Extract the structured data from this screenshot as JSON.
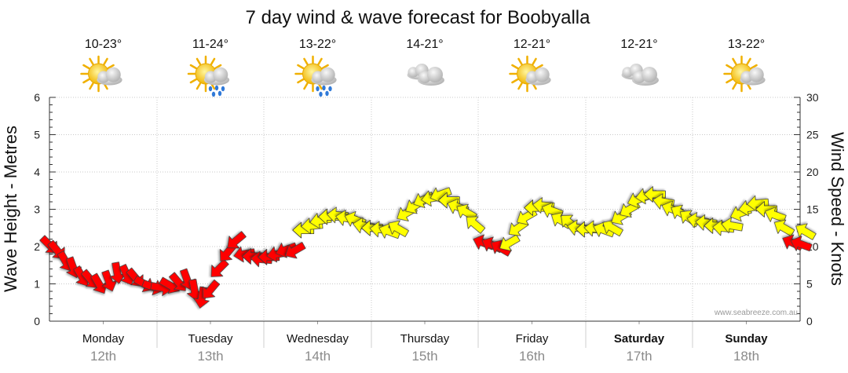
{
  "chart_data": {
    "type": "line",
    "title": "7 day wind & wave forecast for Boobyalla",
    "ylabel_left": "Wave Height - Metres",
    "ylabel_right": "Wind Speed - Knots",
    "ylim_left": [
      0,
      6
    ],
    "ylim_right": [
      0,
      30
    ],
    "yticks_left": [
      "0",
      "1",
      "2",
      "3",
      "4",
      "5",
      "6"
    ],
    "yticks_right": [
      "0",
      "5",
      "10",
      "15",
      "20",
      "25",
      "30"
    ],
    "grid": true,
    "watermark": "www.seabreeze.com.au",
    "days": [
      {
        "name": "Monday",
        "date": "12th",
        "temp": "10-23°",
        "icon": "sun-cloud-icon",
        "bold": false
      },
      {
        "name": "Tuesday",
        "date": "13th",
        "temp": "11-24°",
        "icon": "sun-cloud-rain-icon",
        "bold": false
      },
      {
        "name": "Wednesday",
        "date": "14th",
        "temp": "13-22°",
        "icon": "sun-cloud-rain-icon",
        "bold": false
      },
      {
        "name": "Thursday",
        "date": "15th",
        "temp": "14-21°",
        "icon": "cloud-icon",
        "bold": false
      },
      {
        "name": "Friday",
        "date": "16th",
        "temp": "12-21°",
        "icon": "sun-cloud-icon",
        "bold": false
      },
      {
        "name": "Saturday",
        "date": "17th",
        "temp": "12-21°",
        "icon": "cloud-icon",
        "bold": true
      },
      {
        "name": "Sunday",
        "date": "18th",
        "temp": "13-22°",
        "icon": "sun-cloud-icon",
        "bold": true
      }
    ],
    "series": [
      {
        "name": "Wind Speed",
        "axis": "right",
        "colors": {
          "strong": "#ff0000",
          "moderate": "#ffff00"
        },
        "points": [
          {
            "day": 0.0,
            "knots": 10.2,
            "dir": 315,
            "level": "strong"
          },
          {
            "day": 0.07,
            "knots": 9.5,
            "dir": 320,
            "level": "strong"
          },
          {
            "day": 0.15,
            "knots": 8.0,
            "dir": 330,
            "level": "strong"
          },
          {
            "day": 0.22,
            "knots": 7.2,
            "dir": 340,
            "level": "strong"
          },
          {
            "day": 0.3,
            "knots": 6.0,
            "dir": 330,
            "level": "strong"
          },
          {
            "day": 0.38,
            "knots": 5.6,
            "dir": 320,
            "level": "strong"
          },
          {
            "day": 0.46,
            "knots": 5.0,
            "dir": 330,
            "level": "strong"
          },
          {
            "day": 0.55,
            "knots": 5.4,
            "dir": 340,
            "level": "strong"
          },
          {
            "day": 0.63,
            "knots": 6.5,
            "dir": 350,
            "level": "strong"
          },
          {
            "day": 0.72,
            "knots": 6.2,
            "dir": 335,
            "level": "strong"
          },
          {
            "day": 0.8,
            "knots": 5.8,
            "dir": 320,
            "level": "strong"
          },
          {
            "day": 0.88,
            "knots": 5.0,
            "dir": 300,
            "level": "strong"
          },
          {
            "day": 0.96,
            "knots": 4.6,
            "dir": 290,
            "level": "strong"
          },
          {
            "day": 1.04,
            "knots": 4.5,
            "dir": 280,
            "level": "strong"
          },
          {
            "day": 1.12,
            "knots": 4.8,
            "dir": 300,
            "level": "strong"
          },
          {
            "day": 1.2,
            "knots": 5.2,
            "dir": 320,
            "level": "strong"
          },
          {
            "day": 1.28,
            "knots": 5.6,
            "dir": 340,
            "level": "strong"
          },
          {
            "day": 1.35,
            "knots": 4.2,
            "dir": 350,
            "level": "strong"
          },
          {
            "day": 1.42,
            "knots": 3.2,
            "dir": 10,
            "level": "strong"
          },
          {
            "day": 1.5,
            "knots": 4.2,
            "dir": 40,
            "level": "strong"
          },
          {
            "day": 1.58,
            "knots": 7.0,
            "dir": 45,
            "level": "strong"
          },
          {
            "day": 1.66,
            "knots": 9.2,
            "dir": 40,
            "level": "strong"
          },
          {
            "day": 1.74,
            "knots": 10.8,
            "dir": 50,
            "level": "strong"
          },
          {
            "day": 1.82,
            "knots": 9.0,
            "dir": 80,
            "level": "strong"
          },
          {
            "day": 1.9,
            "knots": 8.7,
            "dir": 90,
            "level": "strong"
          },
          {
            "day": 1.98,
            "knots": 8.3,
            "dir": 95,
            "level": "strong"
          },
          {
            "day": 2.05,
            "knots": 8.6,
            "dir": 90,
            "level": "strong"
          },
          {
            "day": 2.13,
            "knots": 9.0,
            "dir": 80,
            "level": "strong"
          },
          {
            "day": 2.21,
            "knots": 9.6,
            "dir": 70,
            "level": "strong"
          },
          {
            "day": 2.29,
            "knots": 9.5,
            "dir": 60,
            "level": "strong"
          },
          {
            "day": 2.37,
            "knots": 12.2,
            "dir": 90,
            "level": "moderate"
          },
          {
            "day": 2.45,
            "knots": 12.8,
            "dir": 85,
            "level": "moderate"
          },
          {
            "day": 2.53,
            "knots": 13.5,
            "dir": 80,
            "level": "moderate"
          },
          {
            "day": 2.61,
            "knots": 14.0,
            "dir": 90,
            "level": "moderate"
          },
          {
            "day": 2.69,
            "knots": 14.2,
            "dir": 95,
            "level": "moderate"
          },
          {
            "day": 2.77,
            "knots": 13.8,
            "dir": 100,
            "level": "moderate"
          },
          {
            "day": 2.85,
            "knots": 13.6,
            "dir": 110,
            "level": "moderate"
          },
          {
            "day": 2.93,
            "knots": 12.8,
            "dir": 100,
            "level": "moderate"
          },
          {
            "day": 3.01,
            "knots": 12.5,
            "dir": 90,
            "level": "moderate"
          },
          {
            "day": 3.09,
            "knots": 12.3,
            "dir": 95,
            "level": "moderate"
          },
          {
            "day": 3.17,
            "knots": 12.0,
            "dir": 110,
            "level": "moderate"
          },
          {
            "day": 3.25,
            "knots": 12.4,
            "dir": 120,
            "level": "moderate"
          },
          {
            "day": 3.33,
            "knots": 14.5,
            "dir": 60,
            "level": "moderate"
          },
          {
            "day": 3.41,
            "knots": 15.5,
            "dir": 60,
            "level": "moderate"
          },
          {
            "day": 3.49,
            "knots": 16.3,
            "dir": 65,
            "level": "moderate"
          },
          {
            "day": 3.57,
            "knots": 16.5,
            "dir": 80,
            "level": "moderate"
          },
          {
            "day": 3.65,
            "knots": 17.0,
            "dir": 70,
            "level": "moderate"
          },
          {
            "day": 3.73,
            "knots": 16.2,
            "dir": 90,
            "level": "moderate"
          },
          {
            "day": 3.81,
            "knots": 15.3,
            "dir": 110,
            "level": "moderate"
          },
          {
            "day": 3.89,
            "knots": 14.6,
            "dir": 120,
            "level": "moderate"
          },
          {
            "day": 3.97,
            "knots": 13.0,
            "dir": 130,
            "level": "moderate"
          },
          {
            "day": 4.05,
            "knots": 10.5,
            "dir": 110,
            "level": "strong"
          },
          {
            "day": 4.13,
            "knots": 10.2,
            "dir": 115,
            "level": "strong"
          },
          {
            "day": 4.21,
            "knots": 9.8,
            "dir": 120,
            "level": "strong"
          },
          {
            "day": 4.29,
            "knots": 10.5,
            "dir": 60,
            "level": "moderate"
          },
          {
            "day": 4.37,
            "knots": 12.5,
            "dir": 55,
            "level": "moderate"
          },
          {
            "day": 4.45,
            "knots": 14.0,
            "dir": 60,
            "level": "moderate"
          },
          {
            "day": 4.53,
            "knots": 15.2,
            "dir": 90,
            "level": "moderate"
          },
          {
            "day": 4.61,
            "knots": 15.5,
            "dir": 95,
            "level": "moderate"
          },
          {
            "day": 4.69,
            "knots": 14.8,
            "dir": 110,
            "level": "moderate"
          },
          {
            "day": 4.77,
            "knots": 13.5,
            "dir": 120,
            "level": "moderate"
          },
          {
            "day": 4.85,
            "knots": 13.2,
            "dir": 130,
            "level": "moderate"
          },
          {
            "day": 4.93,
            "knots": 12.5,
            "dir": 100,
            "level": "moderate"
          },
          {
            "day": 5.01,
            "knots": 12.3,
            "dir": 90,
            "level": "moderate"
          },
          {
            "day": 5.09,
            "knots": 12.4,
            "dir": 95,
            "level": "moderate"
          },
          {
            "day": 5.17,
            "knots": 12.2,
            "dir": 110,
            "level": "moderate"
          },
          {
            "day": 5.25,
            "knots": 12.5,
            "dir": 120,
            "level": "moderate"
          },
          {
            "day": 5.33,
            "knots": 14.0,
            "dir": 60,
            "level": "moderate"
          },
          {
            "day": 5.41,
            "knots": 15.0,
            "dir": 60,
            "level": "moderate"
          },
          {
            "day": 5.49,
            "knots": 16.3,
            "dir": 70,
            "level": "moderate"
          },
          {
            "day": 5.57,
            "knots": 16.8,
            "dir": 80,
            "level": "moderate"
          },
          {
            "day": 5.65,
            "knots": 17.0,
            "dir": 90,
            "level": "moderate"
          },
          {
            "day": 5.73,
            "knots": 16.0,
            "dir": 100,
            "level": "moderate"
          },
          {
            "day": 5.81,
            "knots": 15.0,
            "dir": 110,
            "level": "moderate"
          },
          {
            "day": 5.89,
            "knots": 14.5,
            "dir": 120,
            "level": "moderate"
          },
          {
            "day": 5.97,
            "knots": 13.8,
            "dir": 125,
            "level": "moderate"
          },
          {
            "day": 6.05,
            "knots": 13.5,
            "dir": 100,
            "level": "moderate"
          },
          {
            "day": 6.13,
            "knots": 13.2,
            "dir": 95,
            "level": "moderate"
          },
          {
            "day": 6.21,
            "knots": 12.8,
            "dir": 90,
            "level": "moderate"
          },
          {
            "day": 6.29,
            "knots": 12.5,
            "dir": 95,
            "level": "moderate"
          },
          {
            "day": 6.37,
            "knots": 12.8,
            "dir": 100,
            "level": "moderate"
          },
          {
            "day": 6.45,
            "knots": 14.5,
            "dir": 70,
            "level": "moderate"
          },
          {
            "day": 6.53,
            "knots": 15.2,
            "dir": 80,
            "level": "moderate"
          },
          {
            "day": 6.61,
            "knots": 15.8,
            "dir": 85,
            "level": "moderate"
          },
          {
            "day": 6.69,
            "knots": 15.0,
            "dir": 90,
            "level": "moderate"
          },
          {
            "day": 6.77,
            "knots": 14.2,
            "dir": 110,
            "level": "moderate"
          },
          {
            "day": 6.85,
            "knots": 12.5,
            "dir": 120,
            "level": "moderate"
          },
          {
            "day": 6.93,
            "knots": 10.5,
            "dir": 115,
            "level": "strong"
          },
          {
            "day": 7.01,
            "knots": 10.3,
            "dir": 110,
            "level": "strong"
          },
          {
            "day": 7.05,
            "knots": 12.0,
            "dir": 120,
            "level": "moderate"
          }
        ]
      }
    ]
  }
}
